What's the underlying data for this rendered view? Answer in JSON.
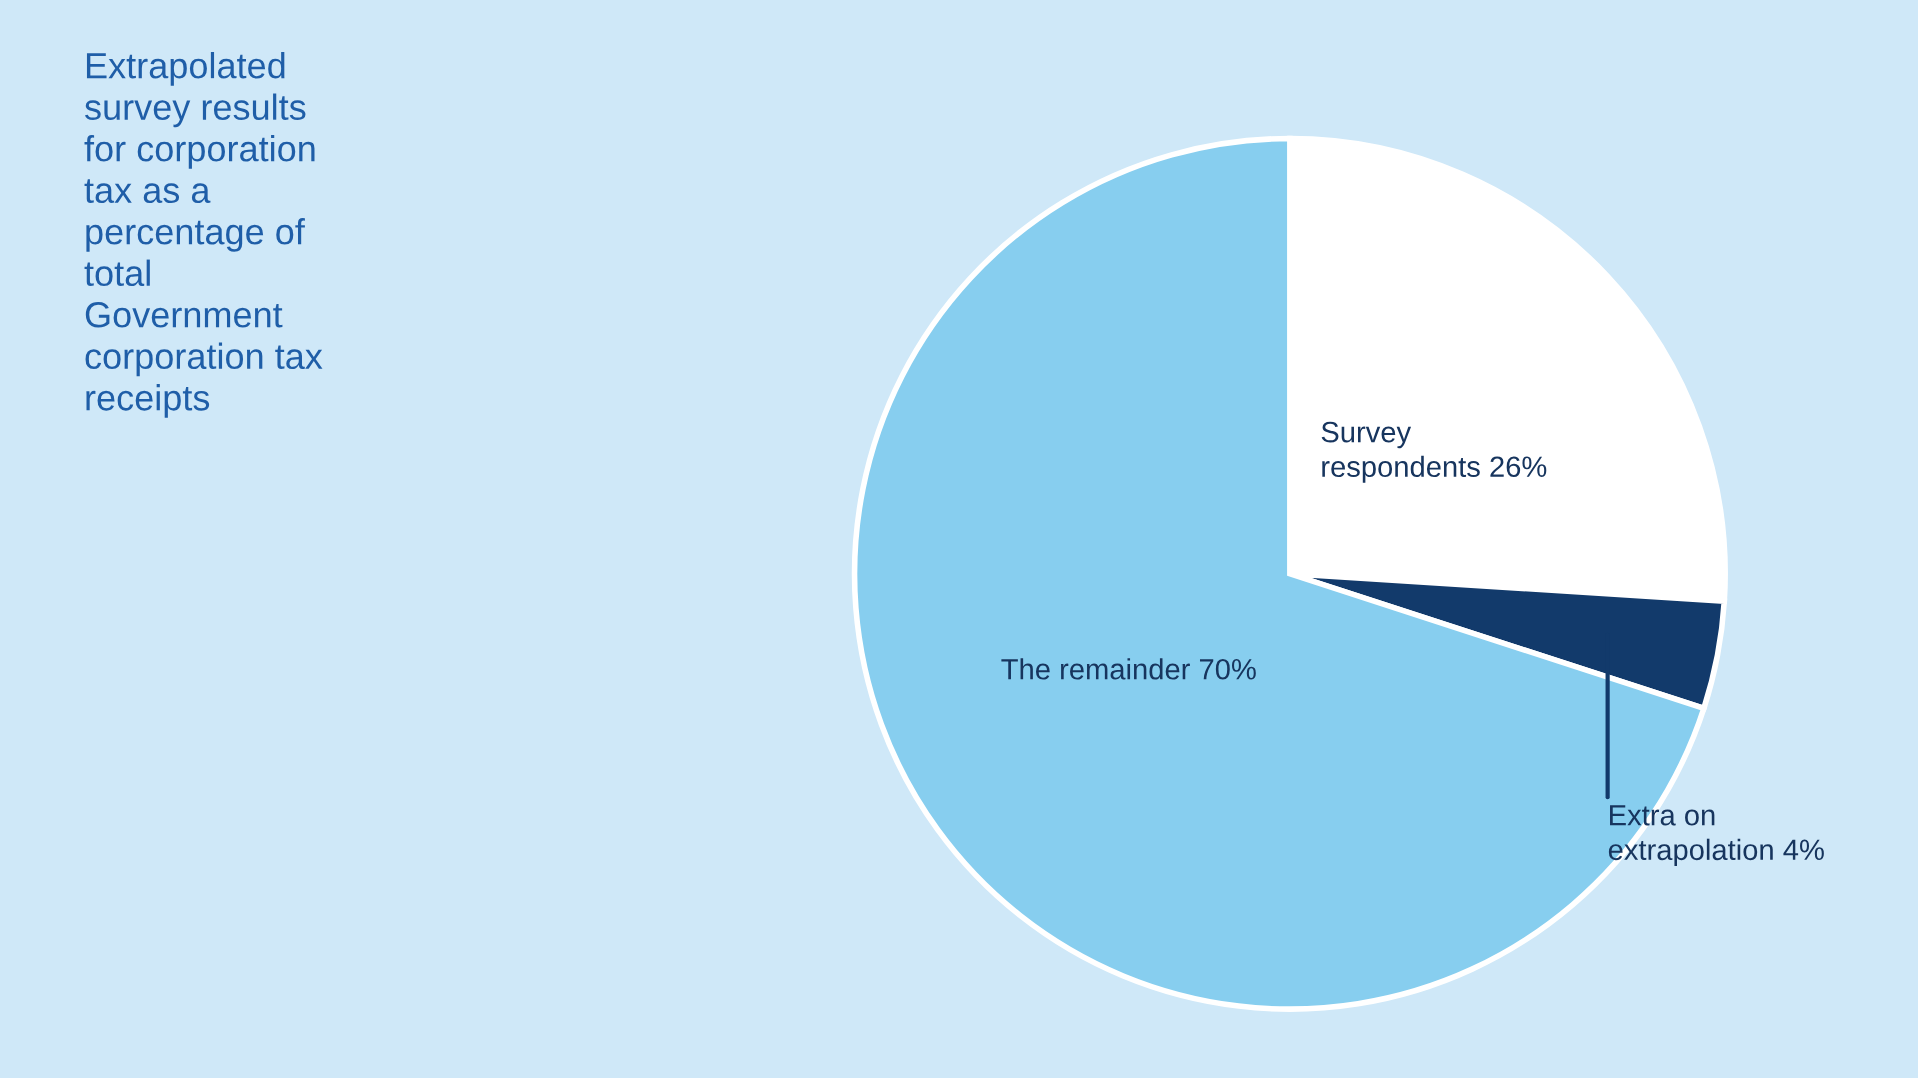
{
  "chart_data": {
    "type": "pie",
    "title": "Extrapolated\nsurvey results\nfor corporation\ntax as a\npercentage of\ntotal\nGovernment\ncorporation tax\nreceipts",
    "categories": [
      "Survey\nrespondents",
      "Extra on\nextrapolation",
      "The remainder"
    ],
    "values": [
      26,
      4,
      70
    ],
    "value_labels": [
      "26%",
      "4%",
      "70%"
    ],
    "colors": [
      "#ffffff",
      "#123a6b",
      "#87ceef"
    ]
  }
}
